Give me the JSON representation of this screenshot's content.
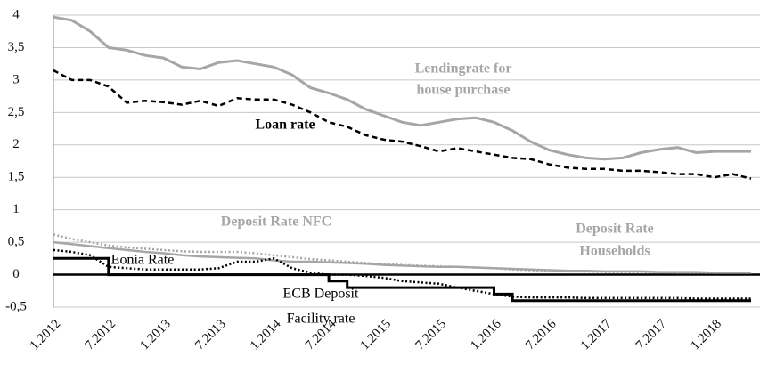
{
  "chart_data": {
    "type": "line",
    "categories": [
      "1.2012",
      null,
      null,
      "7.2012",
      null,
      null,
      "1.2013",
      null,
      null,
      "7.2013",
      null,
      null,
      "1.2014",
      null,
      null,
      "7.2014",
      null,
      null,
      "1.2015",
      null,
      null,
      "7.2015",
      null,
      null,
      "1.2016",
      null,
      null,
      "7.2016",
      null,
      null,
      "1.2017",
      null,
      null,
      "7.2017",
      null,
      null,
      "1.2018",
      null,
      null
    ],
    "series": [
      {
        "name": "Lendingrate  for house purchase",
        "color": "#a6a6a6",
        "style": "solid",
        "width": 3,
        "values": [
          3.97,
          3.92,
          3.75,
          3.5,
          3.46,
          3.38,
          3.34,
          3.2,
          3.17,
          3.27,
          3.3,
          3.25,
          3.2,
          3.08,
          2.88,
          2.8,
          2.7,
          2.55,
          2.45,
          2.35,
          2.3,
          2.35,
          2.4,
          2.42,
          2.35,
          2.22,
          2.05,
          1.92,
          1.85,
          1.8,
          1.78,
          1.8,
          1.88,
          1.93,
          1.96,
          1.88,
          1.9,
          1.9,
          1.9
        ]
      },
      {
        "name": "Loan rate",
        "color": "#000000",
        "style": "dashed",
        "width": 2.5,
        "values": [
          3.15,
          3.0,
          3.0,
          2.9,
          2.65,
          2.68,
          2.66,
          2.62,
          2.68,
          2.6,
          2.72,
          2.7,
          2.7,
          2.62,
          2.5,
          2.35,
          2.28,
          2.15,
          2.08,
          2.05,
          1.98,
          1.9,
          1.95,
          1.9,
          1.85,
          1.8,
          1.78,
          1.7,
          1.65,
          1.63,
          1.63,
          1.6,
          1.6,
          1.58,
          1.55,
          1.55,
          1.5,
          1.55,
          1.48
        ]
      },
      {
        "name": "Deposit Rate NFC",
        "color": "#a6a6a6",
        "style": "dotted",
        "width": 2.5,
        "values": [
          0.62,
          0.55,
          0.5,
          0.45,
          0.42,
          0.4,
          0.38,
          0.36,
          0.35,
          0.35,
          0.35,
          0.33,
          0.3,
          0.27,
          0.24,
          0.22,
          0.2,
          0.18,
          0.16,
          0.15,
          0.14,
          0.13,
          0.12,
          0.11,
          0.1,
          0.08,
          0.07,
          0.06,
          0.05,
          0.05,
          0.04,
          0.04,
          0.04,
          0.04,
          0.03,
          0.03,
          0.03,
          0.03,
          0.03
        ]
      },
      {
        "name": "Deposit Rate Households",
        "color": "#a6a6a6",
        "style": "solid",
        "width": 2.5,
        "values": [
          0.5,
          0.47,
          0.44,
          0.41,
          0.38,
          0.35,
          0.33,
          0.3,
          0.28,
          0.27,
          0.26,
          0.25,
          0.22,
          0.2,
          0.2,
          0.19,
          0.18,
          0.17,
          0.15,
          0.14,
          0.13,
          0.12,
          0.12,
          0.11,
          0.1,
          0.09,
          0.08,
          0.07,
          0.06,
          0.06,
          0.05,
          0.05,
          0.05,
          0.04,
          0.04,
          0.04,
          0.03,
          0.03,
          0.03
        ]
      },
      {
        "name": "Eonia Rate",
        "color": "#000000",
        "style": "dotted",
        "width": 2.5,
        "values": [
          0.38,
          0.35,
          0.3,
          0.12,
          0.1,
          0.08,
          0.08,
          0.08,
          0.08,
          0.1,
          0.2,
          0.2,
          0.25,
          0.1,
          0.03,
          0.0,
          0.0,
          -0.02,
          -0.05,
          -0.1,
          -0.12,
          -0.14,
          -0.2,
          -0.25,
          -0.3,
          -0.34,
          -0.35,
          -0.35,
          -0.35,
          -0.36,
          -0.36,
          -0.36,
          -0.36,
          -0.36,
          -0.36,
          -0.37,
          -0.37,
          -0.37,
          -0.37
        ]
      },
      {
        "name": "ECB Deposit Facility rate",
        "color": "#000000",
        "style": "step",
        "width": 3,
        "values": [
          0.25,
          0.25,
          0.25,
          0,
          0,
          0,
          0,
          0,
          0,
          0,
          0,
          0,
          0,
          0,
          0,
          -0.1,
          -0.2,
          -0.2,
          -0.2,
          -0.2,
          -0.2,
          -0.2,
          -0.2,
          -0.2,
          -0.3,
          -0.4,
          -0.4,
          -0.4,
          -0.4,
          -0.4,
          -0.4,
          -0.4,
          -0.4,
          -0.4,
          -0.4,
          -0.4,
          -0.4,
          -0.4,
          -0.4
        ]
      }
    ],
    "annotations": [
      "Lendingrate  for",
      "house purchase",
      "Loan rate",
      "Deposit Rate NFC",
      "Deposit Rate",
      "Households",
      "Eonia Rate",
      "ECB Deposit",
      "Facility rate"
    ],
    "ylim": [
      -0.5,
      4
    ],
    "yticks": [
      {
        "value": -0.5,
        "label": "-0,5"
      },
      0,
      {
        "value": 0.5,
        "label": "0,5"
      },
      1,
      {
        "value": 1.5,
        "label": "1,5"
      },
      2,
      {
        "value": 2.5,
        "label": "2,5"
      },
      3,
      {
        "value": 3.5,
        "label": "3,5"
      },
      4
    ],
    "grid": true
  }
}
